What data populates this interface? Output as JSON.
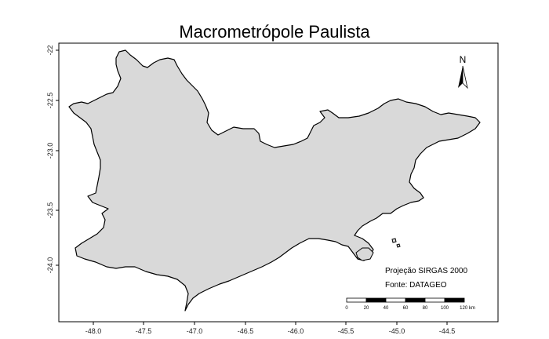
{
  "map": {
    "title": "Macrometrópole Paulista",
    "x_ticks": [
      "-48.0",
      "-47.5",
      "-47.0",
      "-46.5",
      "-46.0",
      "-45.5",
      "-45.0",
      "-44.5"
    ],
    "y_ticks": [
      "-22",
      "-22.5",
      "-23.0",
      "-23.5",
      "-24.0"
    ],
    "north_label": "N",
    "projection_note": "Projeção SIRGAS 2000",
    "source_note": "Fonte: DATAGEO",
    "scale_labels": [
      "0",
      "20",
      "40",
      "60",
      "80",
      "100",
      "120 km"
    ],
    "region_fill": "#d9d9d9",
    "outline_color": "#000000"
  }
}
